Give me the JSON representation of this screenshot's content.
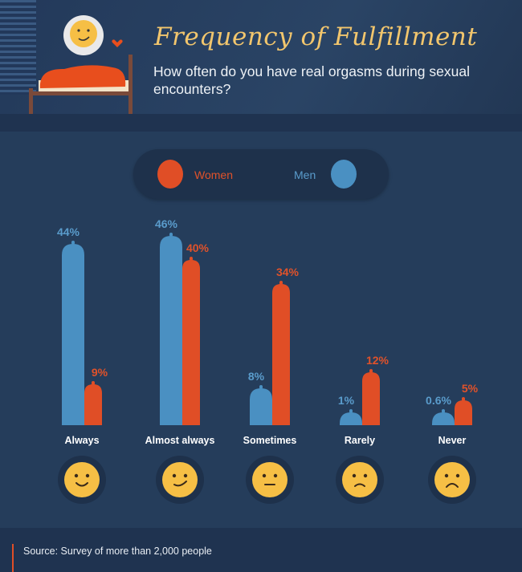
{
  "header": {
    "title": "Frequency of Fulfillment",
    "subtitle": "How often do you have real orgasms during sexual encounters?"
  },
  "legend": {
    "women": "Women",
    "men": "Men"
  },
  "colors": {
    "men": "#4a90c2",
    "women": "#e04e26",
    "label_men": "#5a9ccc",
    "label_women": "#e0522a",
    "bg": "#253d5b"
  },
  "chart_data": {
    "type": "bar",
    "title": "Frequency of Fulfillment",
    "categories": [
      "Always",
      "Almost always",
      "Sometimes",
      "Rarely",
      "Never"
    ],
    "series": [
      {
        "name": "Men",
        "values": [
          44,
          46,
          8,
          1,
          0.6
        ],
        "labels": [
          "44%",
          "46%",
          "8%",
          "1%",
          "0.6%"
        ]
      },
      {
        "name": "Women",
        "values": [
          9,
          40,
          34,
          12,
          5
        ],
        "labels": [
          "9%",
          "40%",
          "34%",
          "12%",
          "5%"
        ]
      }
    ],
    "faces": [
      "smile",
      "smirk",
      "neutral",
      "frown",
      "sad"
    ],
    "unit": "%",
    "ylim": [
      0,
      50
    ],
    "grid": false,
    "legend_position": "top-center"
  },
  "footer": {
    "source": "Source: Survey of more than 2,000 people"
  }
}
